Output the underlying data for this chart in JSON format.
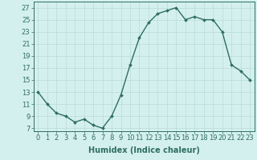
{
  "x": [
    0,
    1,
    2,
    3,
    4,
    5,
    6,
    7,
    8,
    9,
    10,
    11,
    12,
    13,
    14,
    15,
    16,
    17,
    18,
    19,
    20,
    21,
    22,
    23
  ],
  "y": [
    13,
    11,
    9.5,
    9,
    8,
    8.5,
    7.5,
    7,
    9,
    12.5,
    17.5,
    22,
    24.5,
    26,
    26.5,
    27,
    25,
    25.5,
    25,
    25,
    23,
    17.5,
    16.5,
    15
  ],
  "line_color": "#2e6e62",
  "marker": "D",
  "markersize": 2.0,
  "linewidth": 1.0,
  "background_color": "#d4f0ee",
  "grid_color": "#b8dbd8",
  "xlabel": "Humidex (Indice chaleur)",
  "ylabel_ticks": [
    7,
    9,
    11,
    13,
    15,
    17,
    19,
    21,
    23,
    25,
    27
  ],
  "xticks": [
    0,
    1,
    2,
    3,
    4,
    5,
    6,
    7,
    8,
    9,
    10,
    11,
    12,
    13,
    14,
    15,
    16,
    17,
    18,
    19,
    20,
    21,
    22,
    23
  ],
  "xlim": [
    -0.5,
    23.5
  ],
  "ylim": [
    6.5,
    28.0
  ],
  "xlabel_fontsize": 7,
  "tick_fontsize": 6
}
